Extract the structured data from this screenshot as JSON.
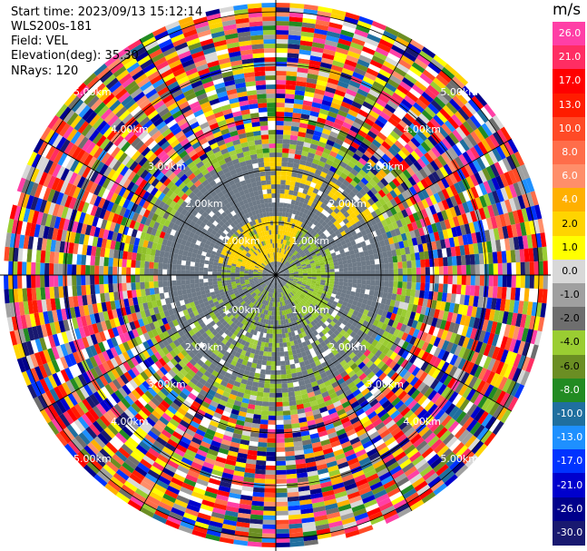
{
  "info": {
    "start_time": "Start time: 2023/09/13 15:12:14",
    "instrument": "WLS200s-181",
    "field": "Field: VEL",
    "elevation": "Elevation(deg): 35.30",
    "nrays": "NRays: 120"
  },
  "colorbar": {
    "unit": "m/s",
    "ticks": [
      "26.0",
      "21.0",
      "17.0",
      "13.0",
      "10.0",
      "8.0",
      "6.0",
      "4.0",
      "2.0",
      "1.0",
      "0.0",
      "-1.0",
      "-2.0",
      "-4.0",
      "-6.0",
      "-8.0",
      "-10.0",
      "-13.0",
      "-17.0",
      "-21.0",
      "-26.0",
      "-30.0"
    ],
    "colors": [
      "#ff3fa6",
      "#ff2d63",
      "#ff0000",
      "#ff1c00",
      "#ff4a26",
      "#ff6d4a",
      "#ff8e6a",
      "#ffb000",
      "#ffd400",
      "#ffff00",
      "#d8d8d8",
      "#a0a0a0",
      "#6e6e6e",
      "#9acd32",
      "#6b8e23",
      "#228b22",
      "#1f6f9f",
      "#1e90ff",
      "#0033ff",
      "#0000cd",
      "#00008b",
      "#191970"
    ]
  },
  "chart_data": {
    "type": "heatmap",
    "projection": "polar PPI",
    "field": "VEL",
    "rays": 120,
    "range_rings_km": [
      "1.00km",
      "2.00km",
      "3.00km",
      "4.00km",
      "5.00km"
    ],
    "velocity_bins": [
      26.0,
      21.0,
      17.0,
      13.0,
      10.0,
      8.0,
      6.0,
      4.0,
      2.0,
      1.0,
      0.0,
      -1.0,
      -2.0,
      -4.0,
      -6.0,
      -8.0,
      -10.0,
      -13.0,
      -17.0,
      -21.0,
      -26.0,
      -30.0
    ]
  }
}
